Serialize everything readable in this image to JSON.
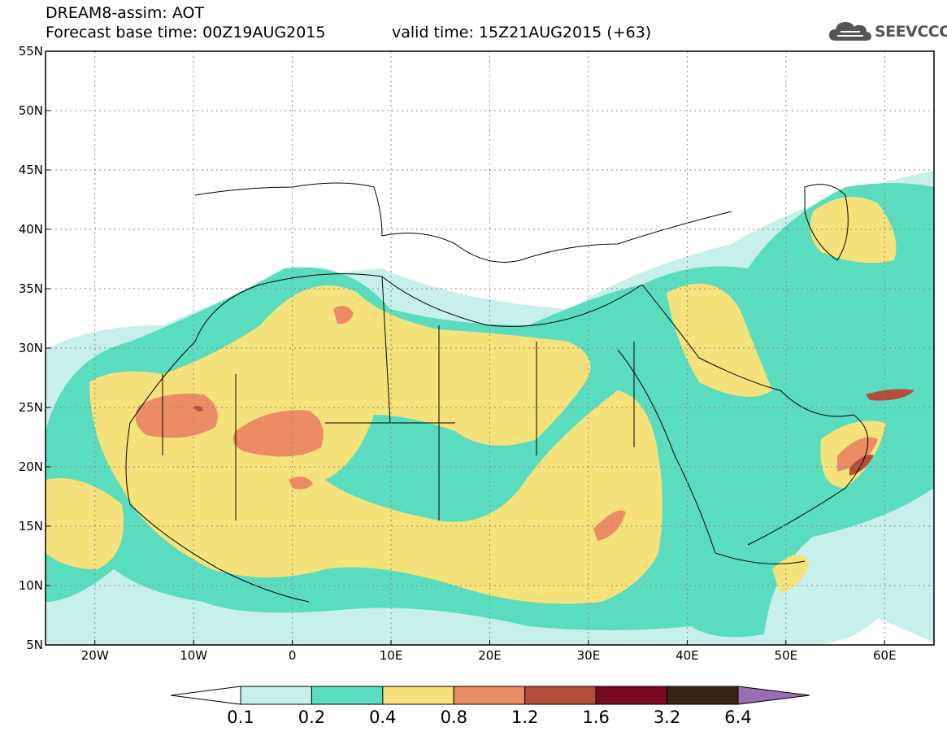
{
  "header": {
    "title_line1": "DREAM8-assim: AOT",
    "title_line2": "Forecast base time: 00Z19AUG2015",
    "valid_time": "valid time: 15Z21AUG2015 (+63)",
    "logo_text": "SEEVCCC",
    "logo_icon": "cloud-icon"
  },
  "map": {
    "lon_range": [
      -25,
      65
    ],
    "lat_range": [
      5,
      55
    ],
    "lon_ticks": [
      {
        "value": -20,
        "label": "20W"
      },
      {
        "value": -10,
        "label": "10W"
      },
      {
        "value": 0,
        "label": "0"
      },
      {
        "value": 10,
        "label": "10E"
      },
      {
        "value": 20,
        "label": "20E"
      },
      {
        "value": 30,
        "label": "30E"
      },
      {
        "value": 40,
        "label": "40E"
      },
      {
        "value": 50,
        "label": "50E"
      },
      {
        "value": 60,
        "label": "60E"
      }
    ],
    "lat_ticks": [
      {
        "value": 5,
        "label": "5N"
      },
      {
        "value": 10,
        "label": "10N"
      },
      {
        "value": 15,
        "label": "15N"
      },
      {
        "value": 20,
        "label": "20N"
      },
      {
        "value": 25,
        "label": "25N"
      },
      {
        "value": 30,
        "label": "30N"
      },
      {
        "value": 35,
        "label": "35N"
      },
      {
        "value": 40,
        "label": "40N"
      },
      {
        "value": 45,
        "label": "45N"
      },
      {
        "value": 50,
        "label": "50N"
      },
      {
        "value": 55,
        "label": "55N"
      }
    ],
    "colors": {
      "c01": "#c8f0ea",
      "c02": "#5adcbe",
      "c04": "#f5e27a",
      "c08": "#eb8c64",
      "c12": "#b44e3a",
      "c16": "#7a0a24",
      "c32": "#3a2414",
      "c64": "#9a6eb4"
    }
  },
  "colorbar": {
    "labels": [
      "0.1",
      "0.2",
      "0.4",
      "0.8",
      "1.2",
      "1.6",
      "3.2",
      "6.4"
    ],
    "colors": [
      "#c8f0ea",
      "#5adcbe",
      "#f5e27a",
      "#eb8c64",
      "#b44e3a",
      "#7a0a24",
      "#3a2414"
    ],
    "under_color": "#ffffff",
    "over_color": "#9a6eb4"
  }
}
